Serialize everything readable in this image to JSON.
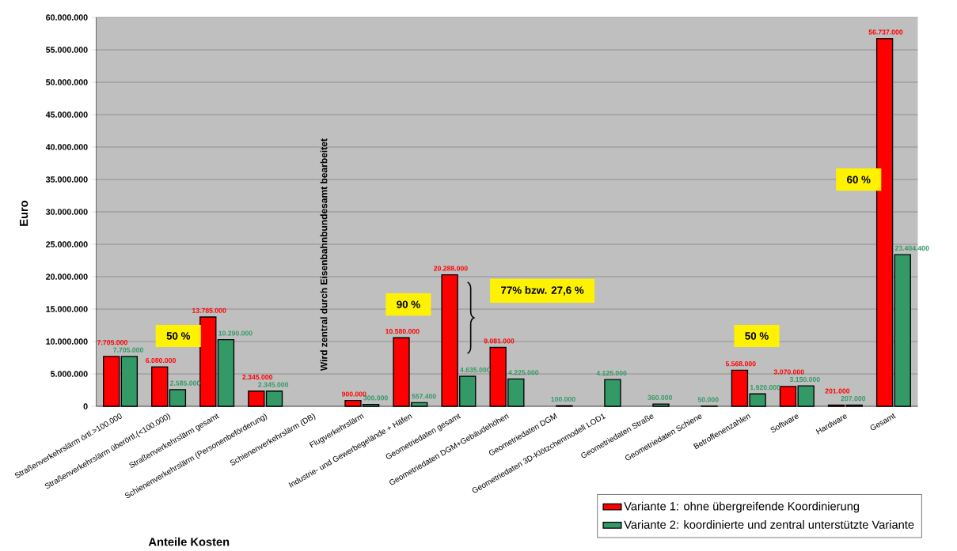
{
  "chart_data": {
    "type": "bar",
    "xlabel": "Anteile Kosten",
    "ylabel": "Euro",
    "categories": [
      "Straßenverkehrslärm örtl.>100.000",
      "Straßenverkehrslärm überörtl.(<100.000)",
      "Straßenverkehrslärm gesamt",
      "Schienenverkehrslärm (Personenbeförderung)",
      "Schienenverkehrslärm (DB)",
      "Flugverkehrslärm",
      "Industrie- und Gewerbegelände + Häfen",
      "Geometriedaten gesamt",
      "Geometriedaten DGM+Gebäudehöhen",
      "Geometriedaten DGM",
      "Geometriedaten 3D-Klötzchenmodell LOD1",
      "Geometriedaten Straße",
      "Geometriedaten Schiene",
      "Betroffenenzahlen",
      "Software",
      "Hardware",
      "Gesamt"
    ],
    "series": [
      {
        "name": "Variante 1: ohne übergreifende Koordinierung",
        "color": "#ff0000",
        "values": [
          7705000,
          6080000,
          13785000,
          2345000,
          null,
          900000,
          10580000,
          20288000,
          9081000,
          null,
          null,
          null,
          null,
          5568000,
          3070000,
          201000,
          56737000
        ],
        "value_labels": [
          "7.705.000",
          "6.080.000",
          "13.785.000",
          "2.345.000",
          null,
          "900.000",
          "10.580.000",
          "20.288.000",
          "9.081.000",
          null,
          null,
          null,
          null,
          "5.568.000",
          "3.070.000",
          "201.000",
          "56.737.000"
        ]
      },
      {
        "name": "Variante 2: koordinierte und zentral unterstützte Variante",
        "color": "#339966",
        "values": [
          7705000,
          2585000,
          10290000,
          2345000,
          null,
          300000,
          557400,
          4635000,
          4225000,
          100000,
          4125000,
          360000,
          50000,
          1920000,
          3150000,
          207000,
          23404400
        ],
        "value_labels": [
          "7.705.000",
          "2.585.000",
          "10.290.000",
          "2.345.000",
          null,
          "300.000",
          "557.400",
          "4.635.000",
          "4.225.000",
          "100.000",
          "4.125.000",
          "360.000",
          "50.000",
          "1.920.000",
          "3.150.000",
          "207.000",
          "23.404.400"
        ]
      }
    ],
    "ylim": [
      0,
      60000000
    ],
    "yticks": [
      {
        "value": 0,
        "label": "0"
      },
      {
        "value": 5000000,
        "label": "5.000.000"
      },
      {
        "value": 10000000,
        "label": "10.000.000"
      },
      {
        "value": 15000000,
        "label": "15.000.000"
      },
      {
        "value": 20000000,
        "label": "20.000.000"
      },
      {
        "value": 25000000,
        "label": "25.000.000"
      },
      {
        "value": 30000000,
        "label": "30.000.000"
      },
      {
        "value": 35000000,
        "label": "35.000.000"
      },
      {
        "value": 40000000,
        "label": "40.000.000"
      },
      {
        "value": 45000000,
        "label": "45.000.000"
      },
      {
        "value": 50000000,
        "label": "50.000.000"
      },
      {
        "value": 55000000,
        "label": "55.000.000"
      },
      {
        "value": 60000000,
        "label": "60.000.000"
      }
    ],
    "grid": "y",
    "legend": "bottom right",
    "annotations": [
      "50 %",
      "90 %",
      "77% bzw. 27,6 %",
      "50 %",
      "60 %",
      "Wird zentral durch Eisenbahnbundesamt bearbeitet"
    ]
  }
}
